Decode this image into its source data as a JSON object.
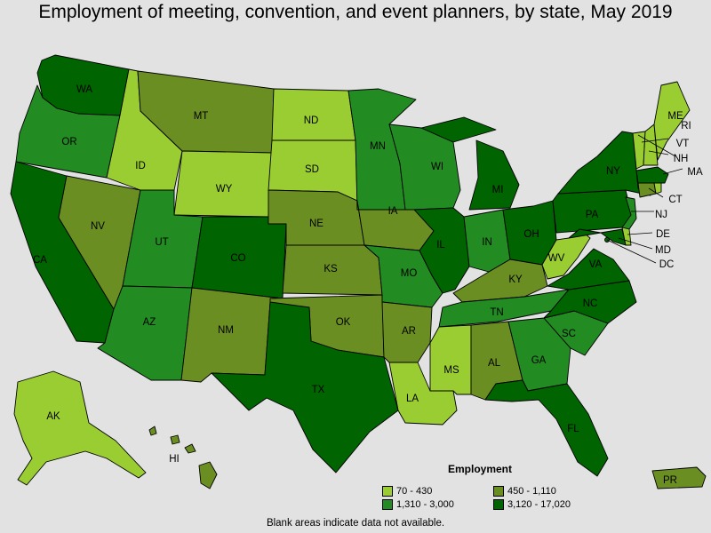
{
  "title": "Employment of meeting, convention, and event planners, by state, May 2019",
  "footnote": "Blank areas indicate data not available.",
  "legend": {
    "title": "Employment",
    "items": [
      {
        "label": "70 - 430",
        "color": "#9acd32"
      },
      {
        "label": "450 - 1,110",
        "color": "#6b8e23"
      },
      {
        "label": "1,310 - 3,000",
        "color": "#228b22"
      },
      {
        "label": "3,120 - 17,020",
        "color": "#006400"
      }
    ]
  },
  "bins": {
    "WA": 3,
    "OR": 2,
    "CA": 3,
    "NV": 1,
    "ID": 0,
    "MT": 1,
    "WY": 0,
    "UT": 2,
    "AZ": 2,
    "CO": 3,
    "NM": 1,
    "ND": 0,
    "SD": 0,
    "NE": 1,
    "KS": 1,
    "OK": 1,
    "TX": 3,
    "MN": 2,
    "IA": 1,
    "MO": 2,
    "AR": 1,
    "LA": 0,
    "WI": 2,
    "IL": 3,
    "MI": 3,
    "IN": 2,
    "OH": 3,
    "KY": 1,
    "TN": 2,
    "MS": 0,
    "AL": 1,
    "GA": 2,
    "FL": 3,
    "SC": 2,
    "NC": 3,
    "VA": 3,
    "WV": 0,
    "PA": 3,
    "NY": 3,
    "ME": 0,
    "NH": 0,
    "VT": 0,
    "MA": 3,
    "CT": 1,
    "RI": 0,
    "NJ": 2,
    "DE": 0,
    "MD": 3,
    "DC": 3,
    "AK": 0,
    "HI": 1,
    "PR": 1
  },
  "labels": {
    "WA": "WA",
    "OR": "OR",
    "CA": "CA",
    "NV": "NV",
    "ID": "ID",
    "MT": "MT",
    "WY": "WY",
    "UT": "UT",
    "AZ": "AZ",
    "CO": "CO",
    "NM": "NM",
    "ND": "ND",
    "SD": "SD",
    "NE": "NE",
    "KS": "KS",
    "OK": "OK",
    "TX": "TX",
    "MN": "MN",
    "IA": "IA",
    "MO": "MO",
    "AR": "AR",
    "LA": "LA",
    "WI": "WI",
    "IL": "IL",
    "MI": "MI",
    "IN": "IN",
    "OH": "OH",
    "KY": "KY",
    "TN": "TN",
    "MS": "MS",
    "AL": "AL",
    "GA": "GA",
    "FL": "FL",
    "SC": "SC",
    "NC": "NC",
    "VA": "VA",
    "WV": "WV",
    "PA": "PA",
    "NY": "NY",
    "ME": "ME",
    "NH": "NH",
    "VT": "VT",
    "MA": "MA",
    "CT": "CT",
    "RI": "RI",
    "NJ": "NJ",
    "DE": "DE",
    "MD": "MD",
    "DC": "DC",
    "AK": "AK",
    "HI": "HI",
    "PR": "PR"
  }
}
